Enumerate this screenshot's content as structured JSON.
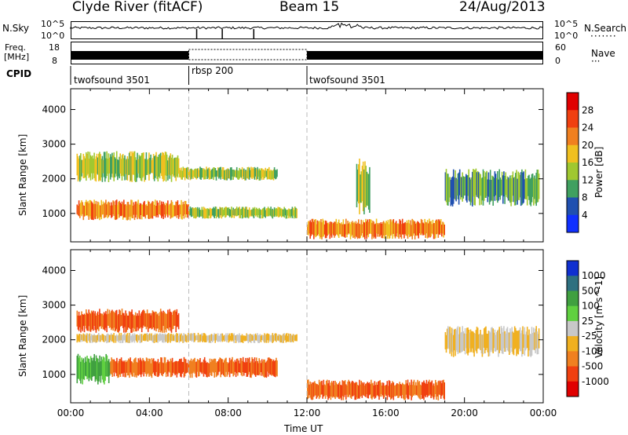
{
  "header": {
    "station": "Clyde River (fitACF)",
    "beam": "Beam 15",
    "date": "24/Aug/2013"
  },
  "top_panels": {
    "nsky_label": "N.Sky",
    "nsky_ticks": [
      "10^5",
      "10^0"
    ],
    "nsearch_label": "N.Search",
    "nsearch_ticks": [
      "10^5",
      "10^0"
    ],
    "freq_label_line1": "Freq.",
    "freq_label_line2": "[MHz]",
    "freq_ticks": [
      "18",
      "8"
    ],
    "nave_label": "Nave",
    "nave_ticks": [
      "60",
      "0"
    ],
    "cpid_label": "CPID",
    "cpid_segments": [
      {
        "name": "twofsound 3501",
        "start": 0,
        "end": 6
      },
      {
        "name": "rbsp 200",
        "start": 6,
        "end": 12
      },
      {
        "name": "twofsound 3501",
        "start": 12,
        "end": 24
      }
    ]
  },
  "chart_data": [
    {
      "type": "heatmap",
      "title": "",
      "xlabel": "Time UT",
      "ylabel": "Slant Range [km]",
      "xlim": [
        0,
        24
      ],
      "ylim": [
        180,
        4600
      ],
      "x_ticks": [
        "00:00",
        "04:00",
        "08:00",
        "12:00",
        "16:00",
        "20:00",
        "00:00"
      ],
      "y_ticks": [
        "1000",
        "2000",
        "3000",
        "4000"
      ],
      "colorbar": {
        "label": "Power [dB]",
        "ticks": [
          "4",
          "8",
          "12",
          "16",
          "20",
          "24",
          "28"
        ],
        "colors": [
          "#1030ff",
          "#2050b0",
          "#40a060",
          "#a0c830",
          "#f0c020",
          "#f08020",
          "#f04010",
          "#e00000"
        ]
      },
      "echo_bands": [
        {
          "t0": 0.3,
          "t1": 6.0,
          "r0": 800,
          "r1": 1400,
          "level": "high"
        },
        {
          "t0": 6.0,
          "t1": 11.5,
          "r0": 850,
          "r1": 1200,
          "level": "mid"
        },
        {
          "t0": 0.3,
          "t1": 5.5,
          "r0": 1900,
          "r1": 2800,
          "level": "mid"
        },
        {
          "t0": 5.5,
          "t1": 10.5,
          "r0": 1950,
          "r1": 2350,
          "level": "mid"
        },
        {
          "t0": 12.0,
          "t1": 19.0,
          "r0": 250,
          "r1": 850,
          "level": "high"
        },
        {
          "t0": 14.5,
          "t1": 15.2,
          "r0": 900,
          "r1": 2600,
          "level": "mid"
        },
        {
          "t0": 19.0,
          "t1": 23.8,
          "r0": 1200,
          "r1": 2300,
          "level": "low"
        }
      ]
    },
    {
      "type": "heatmap",
      "title": "",
      "xlabel": "Time UT",
      "ylabel": "Slant Range [km]",
      "xlim": [
        0,
        24
      ],
      "ylim": [
        180,
        4600
      ],
      "x_ticks": [
        "00:00",
        "04:00",
        "08:00",
        "12:00",
        "16:00",
        "20:00",
        "00:00"
      ],
      "y_ticks": [
        "1000",
        "2000",
        "3000",
        "4000"
      ],
      "colorbar": {
        "label": "Velocity [m s^-1]",
        "ticks": [
          "1000",
          "500",
          "100",
          "25",
          "-25",
          "-100",
          "-500",
          "-1000"
        ],
        "colors": [
          "#1030d0",
          "#2e7080",
          "#40a040",
          "#60d040",
          "#c8c8c8",
          "#f0b020",
          "#f08020",
          "#f04010",
          "#e00000"
        ]
      },
      "echo_bands": [
        {
          "t0": 0.3,
          "t1": 5.5,
          "r0": 2200,
          "r1": 2900,
          "level": "neg"
        },
        {
          "t0": 0.3,
          "t1": 11.5,
          "r0": 1900,
          "r1": 2200,
          "level": "zero"
        },
        {
          "t0": 0.3,
          "t1": 2.0,
          "r0": 700,
          "r1": 1600,
          "level": "pos"
        },
        {
          "t0": 2.0,
          "t1": 10.5,
          "r0": 900,
          "r1": 1500,
          "level": "neg"
        },
        {
          "t0": 12.0,
          "t1": 19.0,
          "r0": 250,
          "r1": 850,
          "level": "neg"
        },
        {
          "t0": 19.0,
          "t1": 23.8,
          "r0": 1500,
          "r1": 2400,
          "level": "zero"
        }
      ]
    }
  ]
}
